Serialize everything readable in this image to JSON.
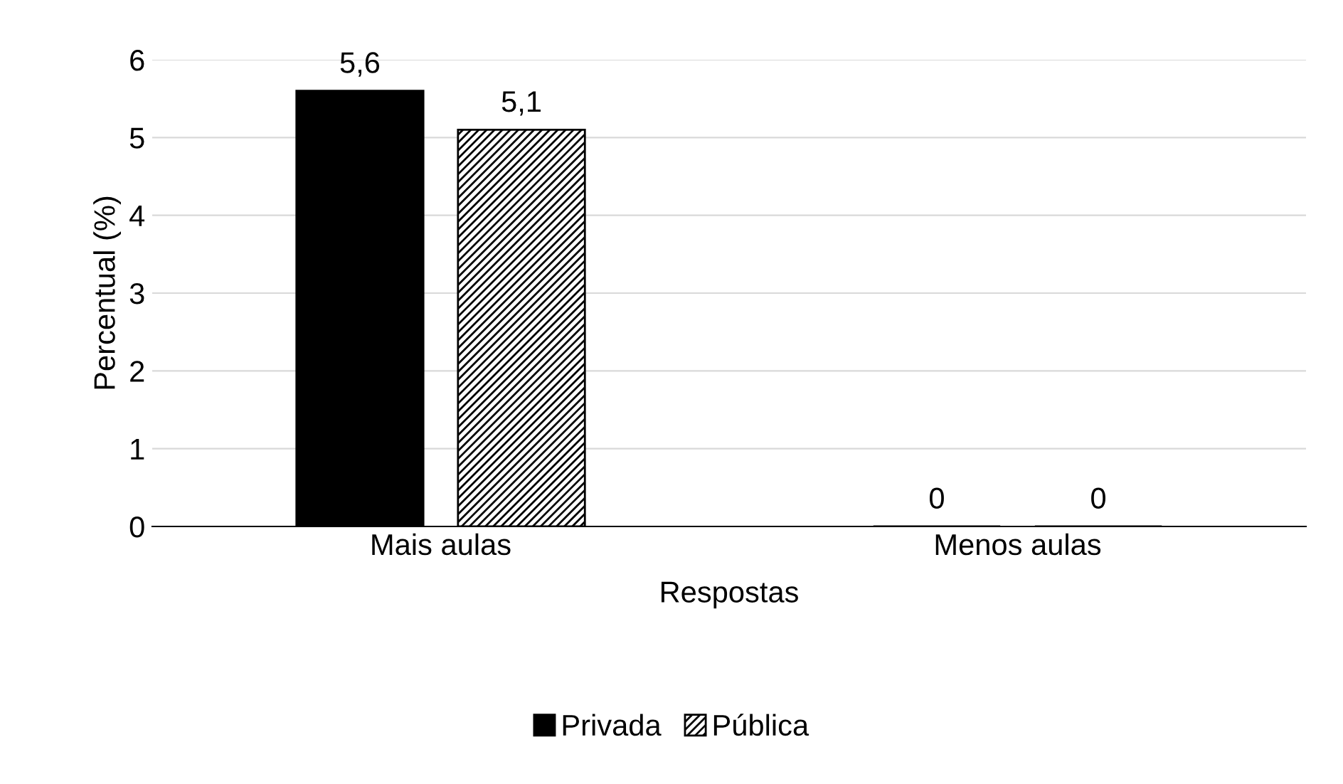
{
  "chart_data": {
    "type": "bar",
    "xlabel": "Respostas",
    "ylabel": "Percentual (%)",
    "categories": [
      "Mais aulas",
      "Menos aulas"
    ],
    "series": [
      {
        "name": "Privada",
        "color": "#000000",
        "values": [
          5.6,
          0
        ],
        "value_labels": [
          "5,6",
          "0"
        ]
      },
      {
        "name": "Pública",
        "color": "#000000",
        "values": [
          5.1,
          0
        ],
        "value_labels": [
          "5,1",
          "0"
        ]
      }
    ],
    "ylim": [
      0,
      6
    ],
    "yticks": [
      0,
      1,
      2,
      3,
      4,
      5,
      6
    ],
    "grid": "y",
    "legend": "bottom"
  }
}
